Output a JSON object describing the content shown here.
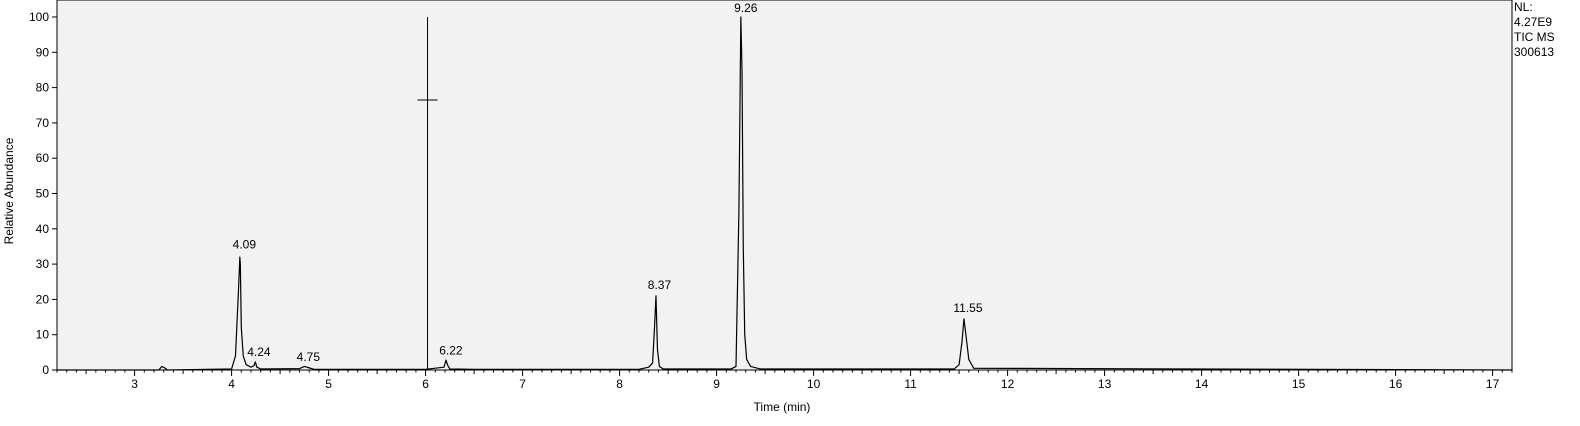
{
  "chart_data": {
    "type": "line",
    "xlabel": "Time (min)",
    "ylabel": "Relative Abundance",
    "xlim": [
      2.2,
      17.2
    ],
    "ylim": [
      0,
      100
    ],
    "x_ticks": [
      "3",
      "4",
      "5",
      "6",
      "7",
      "8",
      "9",
      "10",
      "11",
      "12",
      "13",
      "14",
      "15",
      "16",
      "17"
    ],
    "y_ticks": [
      "0",
      "10",
      "20",
      "30",
      "40",
      "50",
      "60",
      "70",
      "80",
      "90",
      "100"
    ],
    "grid": false,
    "info_lines": [
      "NL:",
      "4.27E9",
      "TIC  MS",
      "300613"
    ],
    "peak_labels": [
      {
        "text": "4.09",
        "x": 4.09,
        "y": 33
      },
      {
        "text": "4.24",
        "x": 4.24,
        "y": 2.5
      },
      {
        "text": "4.75",
        "x": 4.75,
        "y": 1.2
      },
      {
        "text": "6.22",
        "x": 6.22,
        "y": 3
      },
      {
        "text": "8.37",
        "x": 8.37,
        "y": 21.5
      },
      {
        "text": "9.26",
        "x": 9.26,
        "y": 100
      },
      {
        "text": "11.55",
        "x": 11.55,
        "y": 15
      }
    ],
    "marker": {
      "x": 6.02,
      "y_top": 100,
      "y_cross": 76.5
    },
    "series": [
      {
        "x": [
          2.2,
          3.25,
          3.28,
          3.31,
          3.34,
          4.0,
          4.04,
          4.07,
          4.085,
          4.09,
          4.1,
          4.12,
          4.15,
          4.2,
          4.23,
          4.245,
          4.26,
          4.3,
          4.7,
          4.75,
          4.8,
          4.85,
          5.9,
          6.0,
          6.19,
          6.21,
          6.23,
          6.25,
          6.5,
          8.2,
          8.3,
          8.34,
          8.36,
          8.375,
          8.39,
          8.41,
          8.45,
          9.15,
          9.2,
          9.23,
          9.25,
          9.262,
          9.275,
          9.29,
          9.31,
          9.35,
          9.45,
          11.45,
          11.5,
          11.53,
          11.55,
          11.57,
          11.6,
          11.65,
          17.2
        ],
        "values": [
          0,
          0,
          1,
          0.6,
          0,
          0.3,
          4,
          22,
          32,
          30,
          12,
          4,
          1.5,
          0.8,
          1.2,
          2.3,
          0.8,
          0.3,
          0.4,
          1,
          0.6,
          0.2,
          0.2,
          0.2,
          0.8,
          2.8,
          1.2,
          0.3,
          0.2,
          0.2,
          0.8,
          2,
          12,
          21,
          6,
          1,
          0.3,
          0.3,
          1,
          45,
          100,
          85,
          35,
          10,
          3,
          1,
          0.3,
          0.3,
          1.5,
          8,
          14.5,
          10,
          3,
          0.5,
          0
        ]
      }
    ]
  }
}
